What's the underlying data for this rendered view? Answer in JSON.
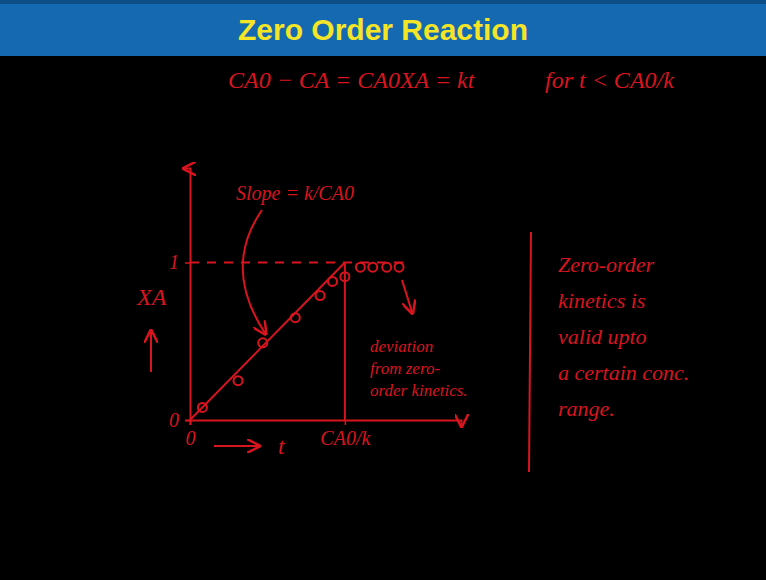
{
  "chart_data": {
    "type": "line",
    "title": "Zero Order Reaction",
    "xlabel": "t",
    "ylabel": "XA",
    "xlim": [
      0,
      1.75
    ],
    "ylim": [
      0,
      1.6
    ],
    "xticks": [
      0,
      {
        "value": 1,
        "label": "CA0/k"
      }
    ],
    "yticks": [
      0,
      1
    ],
    "grid": false,
    "series": [
      {
        "type": "line",
        "color": "#d8141e",
        "line_style": "solid",
        "x": [
          0,
          1
        ],
        "values": [
          0,
          1
        ]
      },
      {
        "type": "line",
        "color": "#d8141e",
        "line_style": "dashed",
        "x": [
          0,
          1.4
        ],
        "values": [
          1,
          1
        ]
      },
      {
        "type": "line",
        "color": "#d8141e",
        "line_style": "solid",
        "x": [
          1,
          1
        ],
        "values": [
          0,
          1
        ]
      },
      {
        "type": "scatter",
        "color": "#d8141e",
        "marker": "circle",
        "x": [
          0.08,
          0.31,
          0.47,
          0.68,
          0.84,
          0.92,
          1.0,
          1.1,
          1.18,
          1.27,
          1.35
        ],
        "values": [
          0.08,
          0.25,
          0.49,
          0.65,
          0.79,
          0.88,
          0.91,
          0.97,
          0.97,
          0.97,
          0.97
        ]
      }
    ],
    "annotations": [
      "CA0 − CA = CA0XA = kt",
      "for t < CA0/k",
      "Slope = k/CA0",
      [
        "deviation",
        "from zero-",
        "order kinetics."
      ],
      [
        "Zero-order",
        "kinetics is",
        "valid upto",
        "a certain conc.",
        "range."
      ]
    ]
  }
}
